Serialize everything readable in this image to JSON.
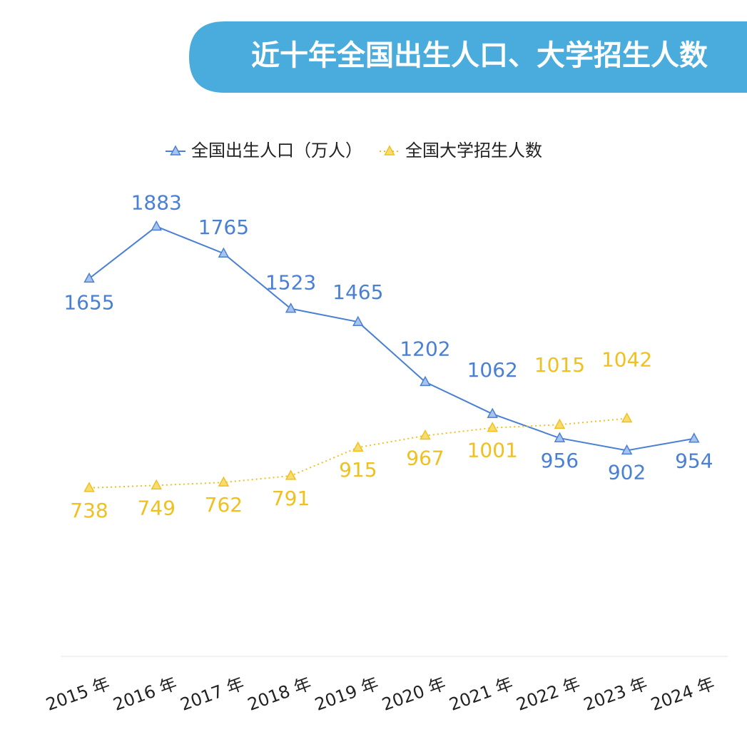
{
  "chart_data": {
    "type": "line",
    "title": "近十年全国出生人口、大学招生人数",
    "categories": [
      "2015 年",
      "2016 年",
      "2017 年",
      "2018 年",
      "2019 年",
      "2020 年",
      "2021 年",
      "2022 年",
      "2023 年",
      "2024 年"
    ],
    "series": [
      {
        "name": "全国出生人口（万人）",
        "color": "#4a80d4",
        "values": [
          1655,
          1883,
          1765,
          1523,
          1465,
          1202,
          1062,
          956,
          902,
          954
        ]
      },
      {
        "name": "全国大学招生人数",
        "color": "#f0c020",
        "values": [
          738,
          749,
          762,
          791,
          915,
          967,
          1001,
          1015,
          1042,
          null
        ]
      }
    ],
    "ylim": [
      0,
      2000
    ],
    "legend": "top"
  }
}
